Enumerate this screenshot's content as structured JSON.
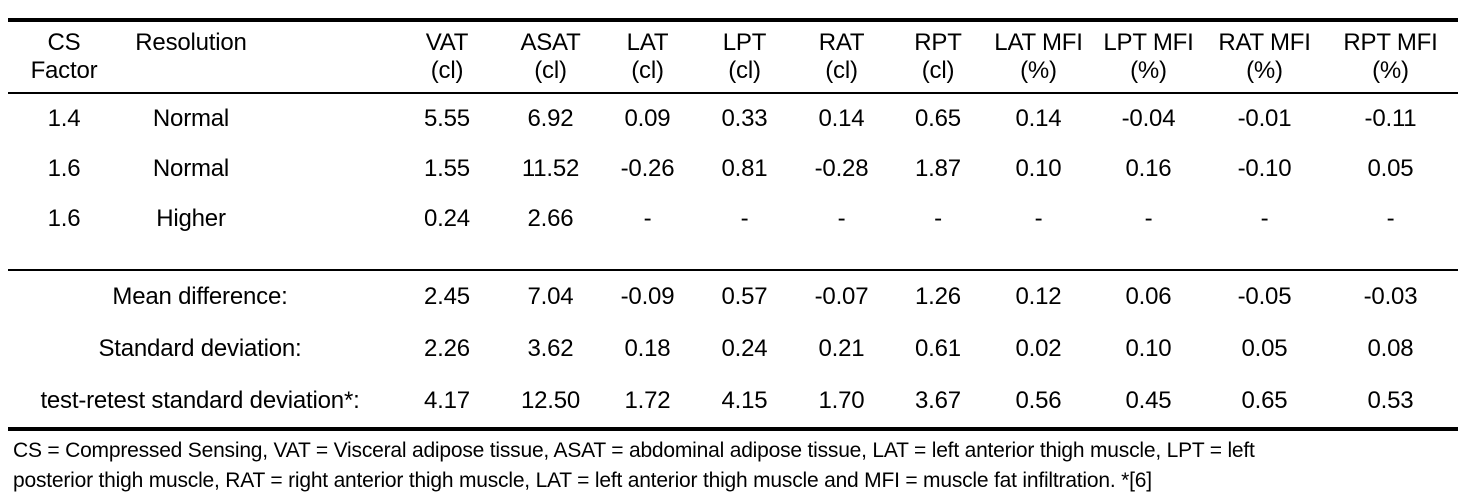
{
  "page": {
    "background_color": "#ffffff",
    "text_color": "#000000",
    "rule_color": "#000000"
  },
  "table": {
    "columns": [
      {
        "line1": "CS",
        "line2": "Factor"
      },
      {
        "line1": "Resolution",
        "line2": ""
      },
      {
        "line1": "VAT",
        "line2": "(cl)"
      },
      {
        "line1": "ASAT",
        "line2": "(cl)"
      },
      {
        "line1": "LAT",
        "line2": "(cl)"
      },
      {
        "line1": "LPT",
        "line2": "(cl)"
      },
      {
        "line1": "RAT",
        "line2": "(cl)"
      },
      {
        "line1": "RPT",
        "line2": "(cl)"
      },
      {
        "line1": "LAT MFI",
        "line2": "(%)"
      },
      {
        "line1": "LPT MFI",
        "line2": "(%)"
      },
      {
        "line1": "RAT MFI",
        "line2": "(%)"
      },
      {
        "line1": "RPT MFI",
        "line2": "(%)"
      }
    ],
    "rows": [
      {
        "cs_factor": "1.4",
        "resolution": "Normal",
        "values": [
          "5.55",
          "6.92",
          "0.09",
          "0.33",
          "0.14",
          "0.65",
          "0.14",
          "-0.04",
          "-0.01",
          "-0.11"
        ]
      },
      {
        "cs_factor": "1.6",
        "resolution": "Normal",
        "values": [
          "1.55",
          "11.52",
          "-0.26",
          "0.81",
          "-0.28",
          "1.87",
          "0.10",
          "0.16",
          "-0.10",
          "0.05"
        ]
      },
      {
        "cs_factor": "1.6",
        "resolution": "Higher",
        "values": [
          "0.24",
          "2.66",
          "-",
          "-",
          "-",
          "-",
          "-",
          "-",
          "-",
          "-"
        ]
      }
    ],
    "summary_rows": [
      {
        "label": "Mean difference:",
        "values": [
          "2.45",
          "7.04",
          "-0.09",
          "0.57",
          "-0.07",
          "1.26",
          "0.12",
          "0.06",
          "-0.05",
          "-0.03"
        ]
      },
      {
        "label": "Standard deviation:",
        "values": [
          "2.26",
          "3.62",
          "0.18",
          "0.24",
          "0.21",
          "0.61",
          "0.02",
          "0.10",
          "0.05",
          "0.08"
        ]
      },
      {
        "label": "test-retest standard deviation*:",
        "values": [
          "4.17",
          "12.50",
          "1.72",
          "4.15",
          "1.70",
          "3.67",
          "0.56",
          "0.45",
          "0.65",
          "0.53"
        ]
      }
    ],
    "footnote_lines": [
      "CS = Compressed Sensing, VAT = Visceral adipose tissue, ASAT = abdominal adipose tissue, LAT = left anterior thigh muscle, LPT = left",
      "posterior thigh muscle, RAT = right anterior thigh muscle, LAT = left anterior thigh muscle and MFI = muscle fat infiltration. *[6]"
    ]
  }
}
